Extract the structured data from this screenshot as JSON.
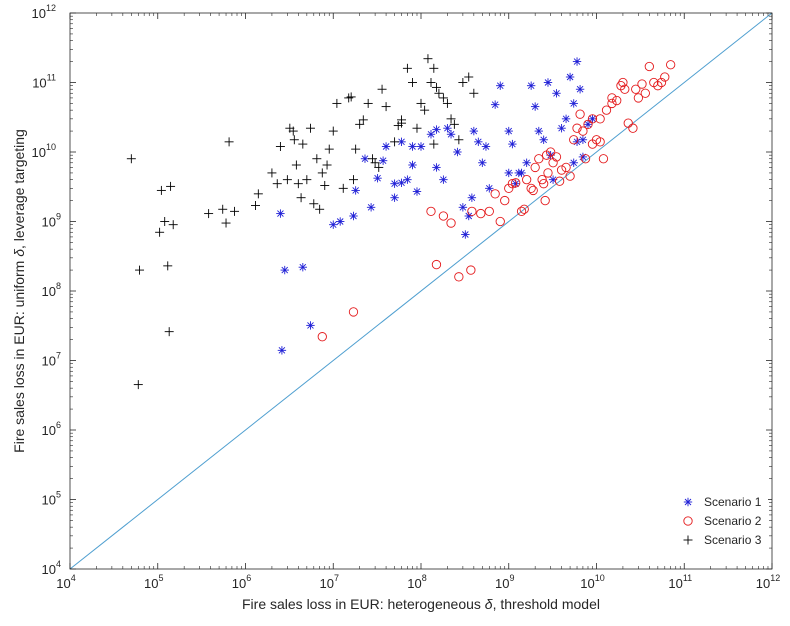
{
  "chart_data": {
    "type": "scatter",
    "xscale": "log",
    "yscale": "log",
    "xlim": [
      10000,
      1000000000000
    ],
    "ylim": [
      10000,
      1000000000000
    ],
    "xlabel": {
      "prefix": "Fire sales loss in EUR: heterogeneous ",
      "symbol": "δ",
      "suffix": ", threshold model"
    },
    "ylabel": {
      "prefix": "Fire sales loss in EUR: uniform ",
      "symbol": "δ",
      "suffix": ", leverage targeting"
    },
    "ticks": [
      {
        "base": "10",
        "exp": "4"
      },
      {
        "base": "10",
        "exp": "5"
      },
      {
        "base": "10",
        "exp": "6"
      },
      {
        "base": "10",
        "exp": "7"
      },
      {
        "base": "10",
        "exp": "8"
      },
      {
        "base": "10",
        "exp": "9"
      },
      {
        "base": "10",
        "exp": "10"
      },
      {
        "base": "10",
        "exp": "11"
      },
      {
        "base": "10",
        "exp": "12"
      }
    ],
    "grid": false,
    "legend_position": "bottom-right",
    "reference_line": {
      "type": "identity",
      "color": "#4f9fd0"
    },
    "series": [
      {
        "name": "Scenario 1",
        "marker": "asterisk",
        "color": "#1f1fd6",
        "points": [
          [
            2500000.0,
            1300000000.0
          ],
          [
            2800000.0,
            200000000.0
          ],
          [
            4500000.0,
            220000000.0
          ],
          [
            5500000.0,
            32000000.0
          ],
          [
            2600000.0,
            14000000.0
          ],
          [
            10000000.0,
            900000000.0
          ],
          [
            12000000.0,
            1000000000.0
          ],
          [
            17000000.0,
            1200000000.0
          ],
          [
            27000000.0,
            1600000000.0
          ],
          [
            32000000.0,
            4200000000.0
          ],
          [
            18000000.0,
            2800000000.0
          ],
          [
            23000000.0,
            8000000000.0
          ],
          [
            37000000.0,
            7500000000.0
          ],
          [
            50000000.0,
            3500000000.0
          ],
          [
            50000000.0,
            2200000000.0
          ],
          [
            60000000.0,
            14000000000.0
          ],
          [
            70000000.0,
            4000000000.0
          ],
          [
            80000000.0,
            6500000000.0
          ],
          [
            90000000.0,
            2700000000.0
          ],
          [
            100000000.0,
            12000000000.0
          ],
          [
            130000000.0,
            18000000000.0
          ],
          [
            150000000.0,
            6000000000.0
          ],
          [
            180000000.0,
            4000000000.0
          ],
          [
            200000000.0,
            22000000000.0
          ],
          [
            220000000.0,
            18000000000.0
          ],
          [
            260000000.0,
            10000000000.0
          ],
          [
            300000000.0,
            1600000000.0
          ],
          [
            320000000.0,
            650000000.0
          ],
          [
            350000000.0,
            1200000000.0
          ],
          [
            380000000.0,
            2200000000.0
          ],
          [
            400000000.0,
            20000000000.0
          ],
          [
            450000000.0,
            14000000000.0
          ],
          [
            500000000.0,
            7000000000.0
          ],
          [
            550000000.0,
            12000000000.0
          ],
          [
            600000000.0,
            3000000000.0
          ],
          [
            700000000.0,
            48000000000.0
          ],
          [
            800000000.0,
            90000000000.0
          ],
          [
            1000000000.0,
            5000000000.0
          ],
          [
            1000000000.0,
            20000000000.0
          ],
          [
            1100000000.0,
            13000000000.0
          ],
          [
            1200000000.0,
            3500000000.0
          ],
          [
            1400000000.0,
            5000000000.0
          ],
          [
            1600000000.0,
            7000000000.0
          ],
          [
            1800000000.0,
            90000000000.0
          ],
          [
            2000000000.0,
            45000000000.0
          ],
          [
            2200000000.0,
            20000000000.0
          ],
          [
            2500000000.0,
            15000000000.0
          ],
          [
            2800000000.0,
            100000000000.0
          ],
          [
            3200000000.0,
            4000000000.0
          ],
          [
            3500000000.0,
            70000000000.0
          ],
          [
            4000000000.0,
            22000000000.0
          ],
          [
            4500000000.0,
            30000000000.0
          ],
          [
            5000000000.0,
            120000000000.0
          ],
          [
            5500000000.0,
            50000000000.0
          ],
          [
            6000000000.0,
            200000000000.0
          ],
          [
            6500000000.0,
            80000000000.0
          ],
          [
            7000000000.0,
            15000000000.0
          ],
          [
            8000000000.0,
            25000000000.0
          ],
          [
            9000000000.0,
            30000000000.0
          ],
          [
            6000000000.0,
            14000000000.0
          ],
          [
            7000000000.0,
            8500000000.0
          ],
          [
            5500000000.0,
            7000000000.0
          ],
          [
            3000000000.0,
            9000000000.0
          ],
          [
            1300000000.0,
            5000000000.0
          ],
          [
            150000000.0,
            21000000000.0
          ],
          [
            80000000.0,
            12000000000.0
          ],
          [
            60000000.0,
            3600000000.0
          ],
          [
            40000000.0,
            12000000000.0
          ]
        ]
      },
      {
        "name": "Scenario 2",
        "marker": "circle",
        "color": "#e41a1c",
        "points": [
          [
            17000000.0,
            50000000.0
          ],
          [
            7500000.0,
            22000000.0
          ],
          [
            150000000.0,
            240000000.0
          ],
          [
            270000000.0,
            160000000.0
          ],
          [
            370000000.0,
            200000000.0
          ],
          [
            130000000.0,
            1400000000.0
          ],
          [
            180000000.0,
            1200000000.0
          ],
          [
            220000000.0,
            950000000.0
          ],
          [
            380000000.0,
            1400000000.0
          ],
          [
            480000000.0,
            1300000000.0
          ],
          [
            600000000.0,
            1400000000.0
          ],
          [
            700000000.0,
            2500000000.0
          ],
          [
            800000000.0,
            1000000000.0
          ],
          [
            900000000.0,
            2000000000.0
          ],
          [
            1000000000.0,
            3000000000.0
          ],
          [
            1100000000.0,
            3500000000.0
          ],
          [
            1200000000.0,
            3600000000.0
          ],
          [
            1400000000.0,
            1400000000.0
          ],
          [
            1500000000.0,
            1500000000.0
          ],
          [
            1600000000.0,
            4000000000.0
          ],
          [
            1800000000.0,
            3000000000.0
          ],
          [
            1900000000.0,
            2800000000.0
          ],
          [
            2000000000.0,
            6000000000.0
          ],
          [
            2200000000.0,
            8000000000.0
          ],
          [
            2400000000.0,
            4000000000.0
          ],
          [
            2500000000.0,
            3500000000.0
          ],
          [
            2600000000.0,
            2000000000.0
          ],
          [
            2700000000.0,
            9000000000.0
          ],
          [
            2800000000.0,
            5000000000.0
          ],
          [
            3000000000.0,
            10000000000.0
          ],
          [
            3200000000.0,
            7000000000.0
          ],
          [
            3500000000.0,
            8500000000.0
          ],
          [
            3800000000.0,
            3800000000.0
          ],
          [
            4000000000.0,
            5500000000.0
          ],
          [
            4500000000.0,
            6000000000.0
          ],
          [
            5000000000.0,
            4500000000.0
          ],
          [
            5500000000.0,
            15000000000.0
          ],
          [
            6000000000.0,
            22000000000.0
          ],
          [
            6500000000.0,
            35000000000.0
          ],
          [
            7000000000.0,
            20000000000.0
          ],
          [
            7500000000.0,
            8000000000.0
          ],
          [
            8000000000.0,
            25000000000.0
          ],
          [
            9000000000.0,
            30000000000.0
          ],
          [
            10000000000.0,
            15000000000.0
          ],
          [
            11000000000.0,
            14000000000.0
          ],
          [
            12000000000.0,
            8000000000.0
          ],
          [
            13000000000.0,
            40000000000.0
          ],
          [
            15000000000.0,
            60000000000.0
          ],
          [
            17000000000.0,
            55000000000.0
          ],
          [
            19000000000.0,
            90000000000.0
          ],
          [
            21000000000.0,
            80000000000.0
          ],
          [
            23000000000.0,
            26000000000.0
          ],
          [
            26000000000.0,
            22000000000.0
          ],
          [
            28000000000.0,
            80000000000.0
          ],
          [
            30000000000.0,
            60000000000.0
          ],
          [
            33000000000.0,
            95000000000.0
          ],
          [
            36000000000.0,
            70000000000.0
          ],
          [
            40000000000.0,
            170000000000.0
          ],
          [
            45000000000.0,
            100000000000.0
          ],
          [
            50000000000.0,
            90000000000.0
          ],
          [
            55000000000.0,
            100000000000.0
          ],
          [
            60000000000.0,
            120000000000.0
          ],
          [
            70000000000.0,
            180000000000.0
          ],
          [
            15000000000.0,
            50000000000.0
          ],
          [
            20000000000.0,
            100000000000.0
          ],
          [
            9000000000.0,
            13000000000.0
          ],
          [
            11000000000.0,
            30000000000.0
          ]
        ]
      },
      {
        "name": "Scenario 3",
        "marker": "plus",
        "color": "#000000",
        "points": [
          [
            50000.0,
            8000000000.0
          ],
          [
            60000.0,
            4500000.0
          ],
          [
            62000.0,
            200000000.0
          ],
          [
            105000.0,
            700000000.0
          ],
          [
            110000.0,
            2800000000.0
          ],
          [
            120000.0,
            1000000000.0
          ],
          [
            130000.0,
            230000000.0
          ],
          [
            135000.0,
            26000000.0
          ],
          [
            140000.0,
            3200000000.0
          ],
          [
            150000.0,
            900000000.0
          ],
          [
            380000.0,
            1300000000.0
          ],
          [
            550000.0,
            1500000000.0
          ],
          [
            600000.0,
            950000000.0
          ],
          [
            650000.0,
            14000000000.0
          ],
          [
            750000.0,
            1400000000.0
          ],
          [
            1300000.0,
            1700000000.0
          ],
          [
            1400000.0,
            2500000000.0
          ],
          [
            2000000.0,
            5000000000.0
          ],
          [
            2300000.0,
            3500000000.0
          ],
          [
            2500000.0,
            12000000000.0
          ],
          [
            3000000.0,
            4000000000.0
          ],
          [
            3200000.0,
            22000000000.0
          ],
          [
            3500000.0,
            20000000000.0
          ],
          [
            3600000.0,
            15000000000.0
          ],
          [
            3800000.0,
            6500000000.0
          ],
          [
            4000000.0,
            3500000000.0
          ],
          [
            4300000.0,
            2200000000.0
          ],
          [
            4500000.0,
            13000000000.0
          ],
          [
            5000000.0,
            4000000000.0
          ],
          [
            5500000.0,
            22000000000.0
          ],
          [
            6000000.0,
            1800000000.0
          ],
          [
            6500000.0,
            8000000000.0
          ],
          [
            7000000.0,
            1500000000.0
          ],
          [
            7500000.0,
            5000000000.0
          ],
          [
            8000000.0,
            3300000000.0
          ],
          [
            8500000.0,
            6500000000.0
          ],
          [
            9000000.0,
            11000000000.0
          ],
          [
            10000000.0,
            20000000000.0
          ],
          [
            11000000.0,
            50000000000.0
          ],
          [
            13000000.0,
            3000000000.0
          ],
          [
            15000000.0,
            60000000000.0
          ],
          [
            16000000.0,
            62000000000.0
          ],
          [
            17000000.0,
            4000000000.0
          ],
          [
            18000000.0,
            11000000000.0
          ],
          [
            20000000.0,
            25000000000.0
          ],
          [
            22000000.0,
            29000000000.0
          ],
          [
            25000000.0,
            50000000000.0
          ],
          [
            28000000.0,
            8000000000.0
          ],
          [
            30000000.0,
            7000000000.0
          ],
          [
            33000000.0,
            6000000000.0
          ],
          [
            36000000.0,
            80000000000.0
          ],
          [
            40000000.0,
            45000000000.0
          ],
          [
            50000000.0,
            14000000000.0
          ],
          [
            55000000.0,
            24000000000.0
          ],
          [
            60000000.0,
            26000000000.0
          ],
          [
            70000000.0,
            160000000000.0
          ],
          [
            80000000.0,
            100000000000.0
          ],
          [
            90000000.0,
            22000000000.0
          ],
          [
            100000000.0,
            50000000000.0
          ],
          [
            110000000.0,
            40000000000.0
          ],
          [
            120000000.0,
            220000000000.0
          ],
          [
            130000000.0,
            100000000000.0
          ],
          [
            140000000.0,
            160000000000.0
          ],
          [
            150000000.0,
            85000000000.0
          ],
          [
            160000000.0,
            70000000000.0
          ],
          [
            180000000.0,
            60000000000.0
          ],
          [
            200000000.0,
            50000000000.0
          ],
          [
            220000000.0,
            30000000000.0
          ],
          [
            240000000.0,
            25000000000.0
          ],
          [
            270000000.0,
            15000000000.0
          ],
          [
            300000000.0,
            100000000000.0
          ],
          [
            350000000.0,
            120000000000.0
          ],
          [
            400000000.0,
            70000000000.0
          ],
          [
            140000000.0,
            13000000000.0
          ],
          [
            60000000.0,
            29000000000.0
          ]
        ]
      }
    ]
  }
}
